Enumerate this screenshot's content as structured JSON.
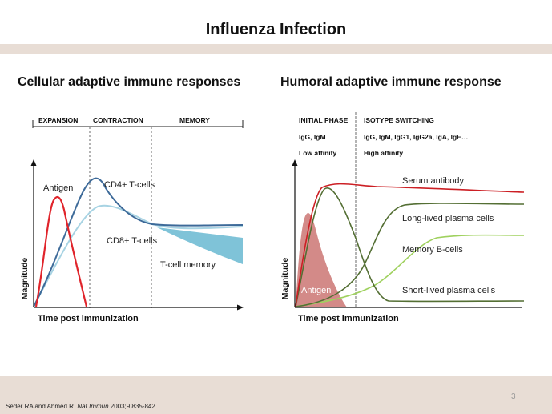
{
  "title": "Influenza Infection",
  "left_panel": {
    "title": "Cellular adaptive immune responses",
    "phases": [
      "EXPANSION",
      "CONTRACTION",
      "MEMORY"
    ],
    "y_axis_label": "Magnitude",
    "x_axis_label": "Time post immunization",
    "curve_labels": {
      "antigen": "Antigen",
      "cd4": "CD4+ T-cells",
      "cd8": "CD8+ T-cells",
      "memory": "T-cell memory"
    }
  },
  "right_panel": {
    "title": "Humoral  adaptive  immune response",
    "phase1": {
      "name": "INITIAL PHASE",
      "line1": "IgG, IgM",
      "line2": "Low affinity"
    },
    "phase2": {
      "name": "ISOTYPE SWITCHING",
      "line1": "IgG, IgM, IgG1, IgG2a, IgA, IgE…",
      "line2": "High affinity"
    },
    "y_axis_label": "Magnitude",
    "x_axis_label": "Time post immunization",
    "curve_labels": {
      "serum": "Serum antibody",
      "long_lived": "Long-lived plasma cells",
      "memory_b": "Memory B-cells",
      "short_lived": "Short-lived plasma cells",
      "antigen": "Antigen"
    }
  },
  "colors": {
    "antigen": "#e0242b",
    "cd4": "#3d6a99",
    "cd8": "#a7d3e3",
    "memory_fill": "#7fc3d8",
    "serum": "#cc1f24",
    "long_lived": "#546f34",
    "memory_b": "#9fd15e",
    "short_lived": "#546f34",
    "antigen_fill": "#d38a88"
  },
  "slide_number": "3",
  "citation": {
    "authors": "Seder RA and Ahmed R. ",
    "journal": "Nat Immun",
    "details": " 2003;9:835-842."
  }
}
